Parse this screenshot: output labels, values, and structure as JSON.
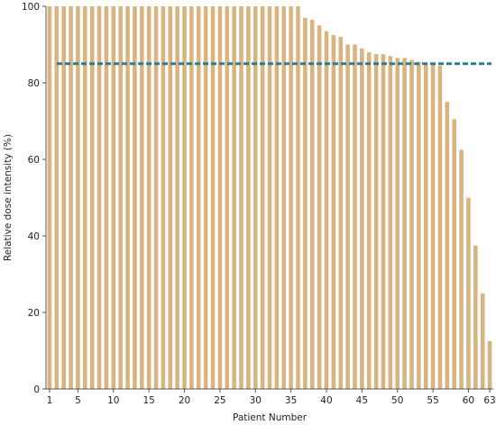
{
  "chart_data": {
    "type": "bar",
    "title": "",
    "xlabel": "Patient Number",
    "ylabel": "Relative dose intensity (%)",
    "ylim": [
      0,
      100
    ],
    "yticks": [
      0,
      20,
      40,
      60,
      80,
      100
    ],
    "xticks": [
      1,
      5,
      10,
      15,
      20,
      25,
      30,
      35,
      40,
      45,
      50,
      55,
      60,
      63
    ],
    "grid": false,
    "legend": "none",
    "bar_color": "#d9b47f",
    "reference_line": {
      "value": 85,
      "style": "dashed",
      "color": "#2a7d95"
    },
    "categories": [
      1,
      2,
      3,
      4,
      5,
      6,
      7,
      8,
      9,
      10,
      11,
      12,
      13,
      14,
      15,
      16,
      17,
      18,
      19,
      20,
      21,
      22,
      23,
      24,
      25,
      26,
      27,
      28,
      29,
      30,
      31,
      32,
      33,
      34,
      35,
      36,
      37,
      38,
      39,
      40,
      41,
      42,
      43,
      44,
      45,
      46,
      47,
      48,
      49,
      50,
      51,
      52,
      53,
      54,
      55,
      56,
      57,
      58,
      59,
      60,
      61,
      62,
      63
    ],
    "values": [
      100,
      100,
      100,
      100,
      100,
      100,
      100,
      100,
      100,
      100,
      100,
      100,
      100,
      100,
      100,
      100,
      100,
      100,
      100,
      100,
      100,
      100,
      100,
      100,
      100,
      100,
      100,
      100,
      100,
      100,
      100,
      100,
      100,
      100,
      100,
      100,
      97,
      96.5,
      95,
      93.5,
      92.5,
      92,
      90,
      90,
      89,
      88,
      87.5,
      87.5,
      87,
      86.5,
      86.5,
      86,
      85.5,
      85,
      85,
      84.5,
      75,
      70.5,
      62.5,
      50,
      37.5,
      25,
      12.5
    ]
  }
}
